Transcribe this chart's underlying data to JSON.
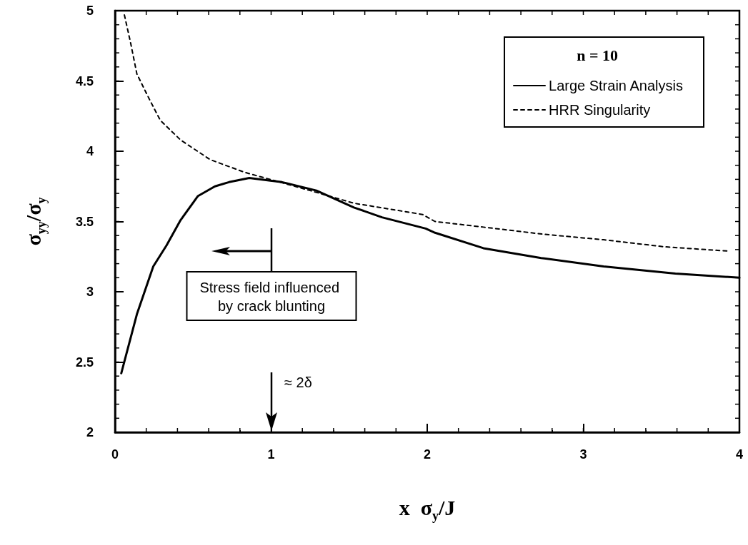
{
  "chart_data": {
    "type": "line",
    "xlabel": "x  σ$_{y}$/J",
    "ylabel": "σ$_{yy}$/σ$_{y}$",
    "legend_title": "n = 10",
    "legend": "top right",
    "marker": "none",
    "grid": false,
    "xlim": [
      0,
      4
    ],
    "xticks": [
      0,
      1,
      2,
      3,
      4
    ],
    "ylim": [
      2,
      5
    ],
    "yticks": [
      2,
      2.5,
      3,
      3.5,
      4,
      4.5,
      5
    ],
    "series": [
      {
        "name": "Large Strain Analysis",
        "color": "#000000",
        "line_style": "solid",
        "x": [
          0.04,
          0.14,
          0.245,
          0.33,
          0.42,
          0.53,
          0.64,
          0.73,
          0.86,
          1.07,
          1.29,
          1.53,
          1.71,
          1.99,
          2.05,
          2.36,
          2.73,
          3.13,
          3.59,
          4.0
        ],
        "values": [
          2.42,
          2.84,
          3.18,
          3.33,
          3.51,
          3.68,
          3.75,
          3.78,
          3.81,
          3.78,
          3.72,
          3.6,
          3.53,
          3.45,
          3.42,
          3.31,
          3.24,
          3.18,
          3.13,
          3.1
        ]
      },
      {
        "name": "HRR Singularity",
        "color": "#000000",
        "line_style": "dashed",
        "x": [
          0.06,
          0.1,
          0.14,
          0.22,
          0.29,
          0.42,
          0.61,
          0.83,
          1.25,
          1.53,
          1.97,
          2.05,
          2.36,
          2.74,
          3.13,
          3.52,
          3.92
        ],
        "values": [
          4.97,
          4.77,
          4.55,
          4.37,
          4.22,
          4.08,
          3.94,
          3.85,
          3.72,
          3.63,
          3.55,
          3.5,
          3.46,
          3.41,
          3.37,
          3.32,
          3.29
        ]
      }
    ],
    "annotations": [
      "Stress field influenced by crack blunting",
      "≈ 2δ"
    ]
  }
}
